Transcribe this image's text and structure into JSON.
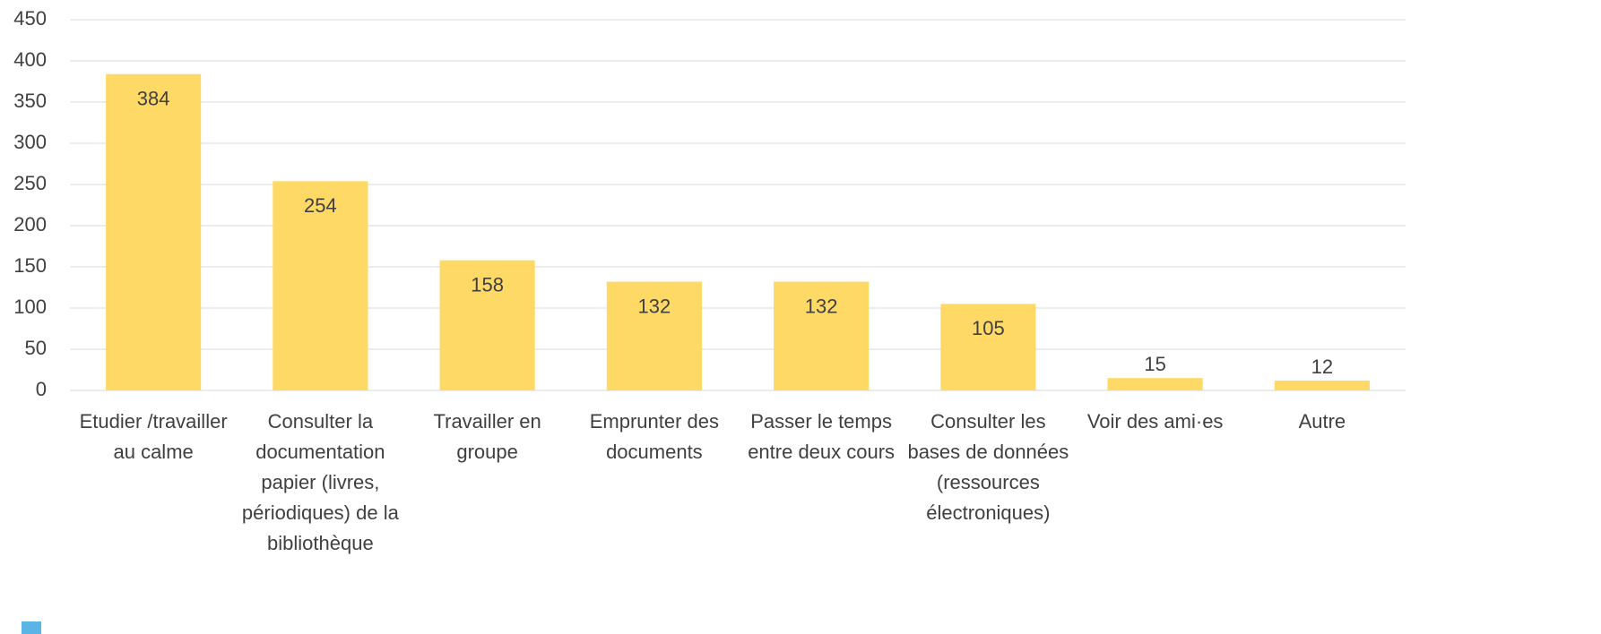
{
  "chart_data": {
    "type": "bar",
    "categories": [
      "Etudier /travailler au calme",
      "Consulter la documentation papier (livres, périodiques) de la bibliothèque",
      "Travailler en groupe",
      "Emprunter des documents",
      "Passer le temps entre deux cours",
      "Consulter les bases de données (ressources électroniques)",
      "Voir des ami·es",
      "Autre"
    ],
    "values": [
      384,
      254,
      158,
      132,
      132,
      105,
      15,
      12
    ],
    "color": "#ffd966",
    "ylim": [
      0,
      450
    ],
    "yticks": [
      0,
      50,
      100,
      150,
      200,
      250,
      300,
      350,
      400,
      450
    ],
    "grid": true
  }
}
